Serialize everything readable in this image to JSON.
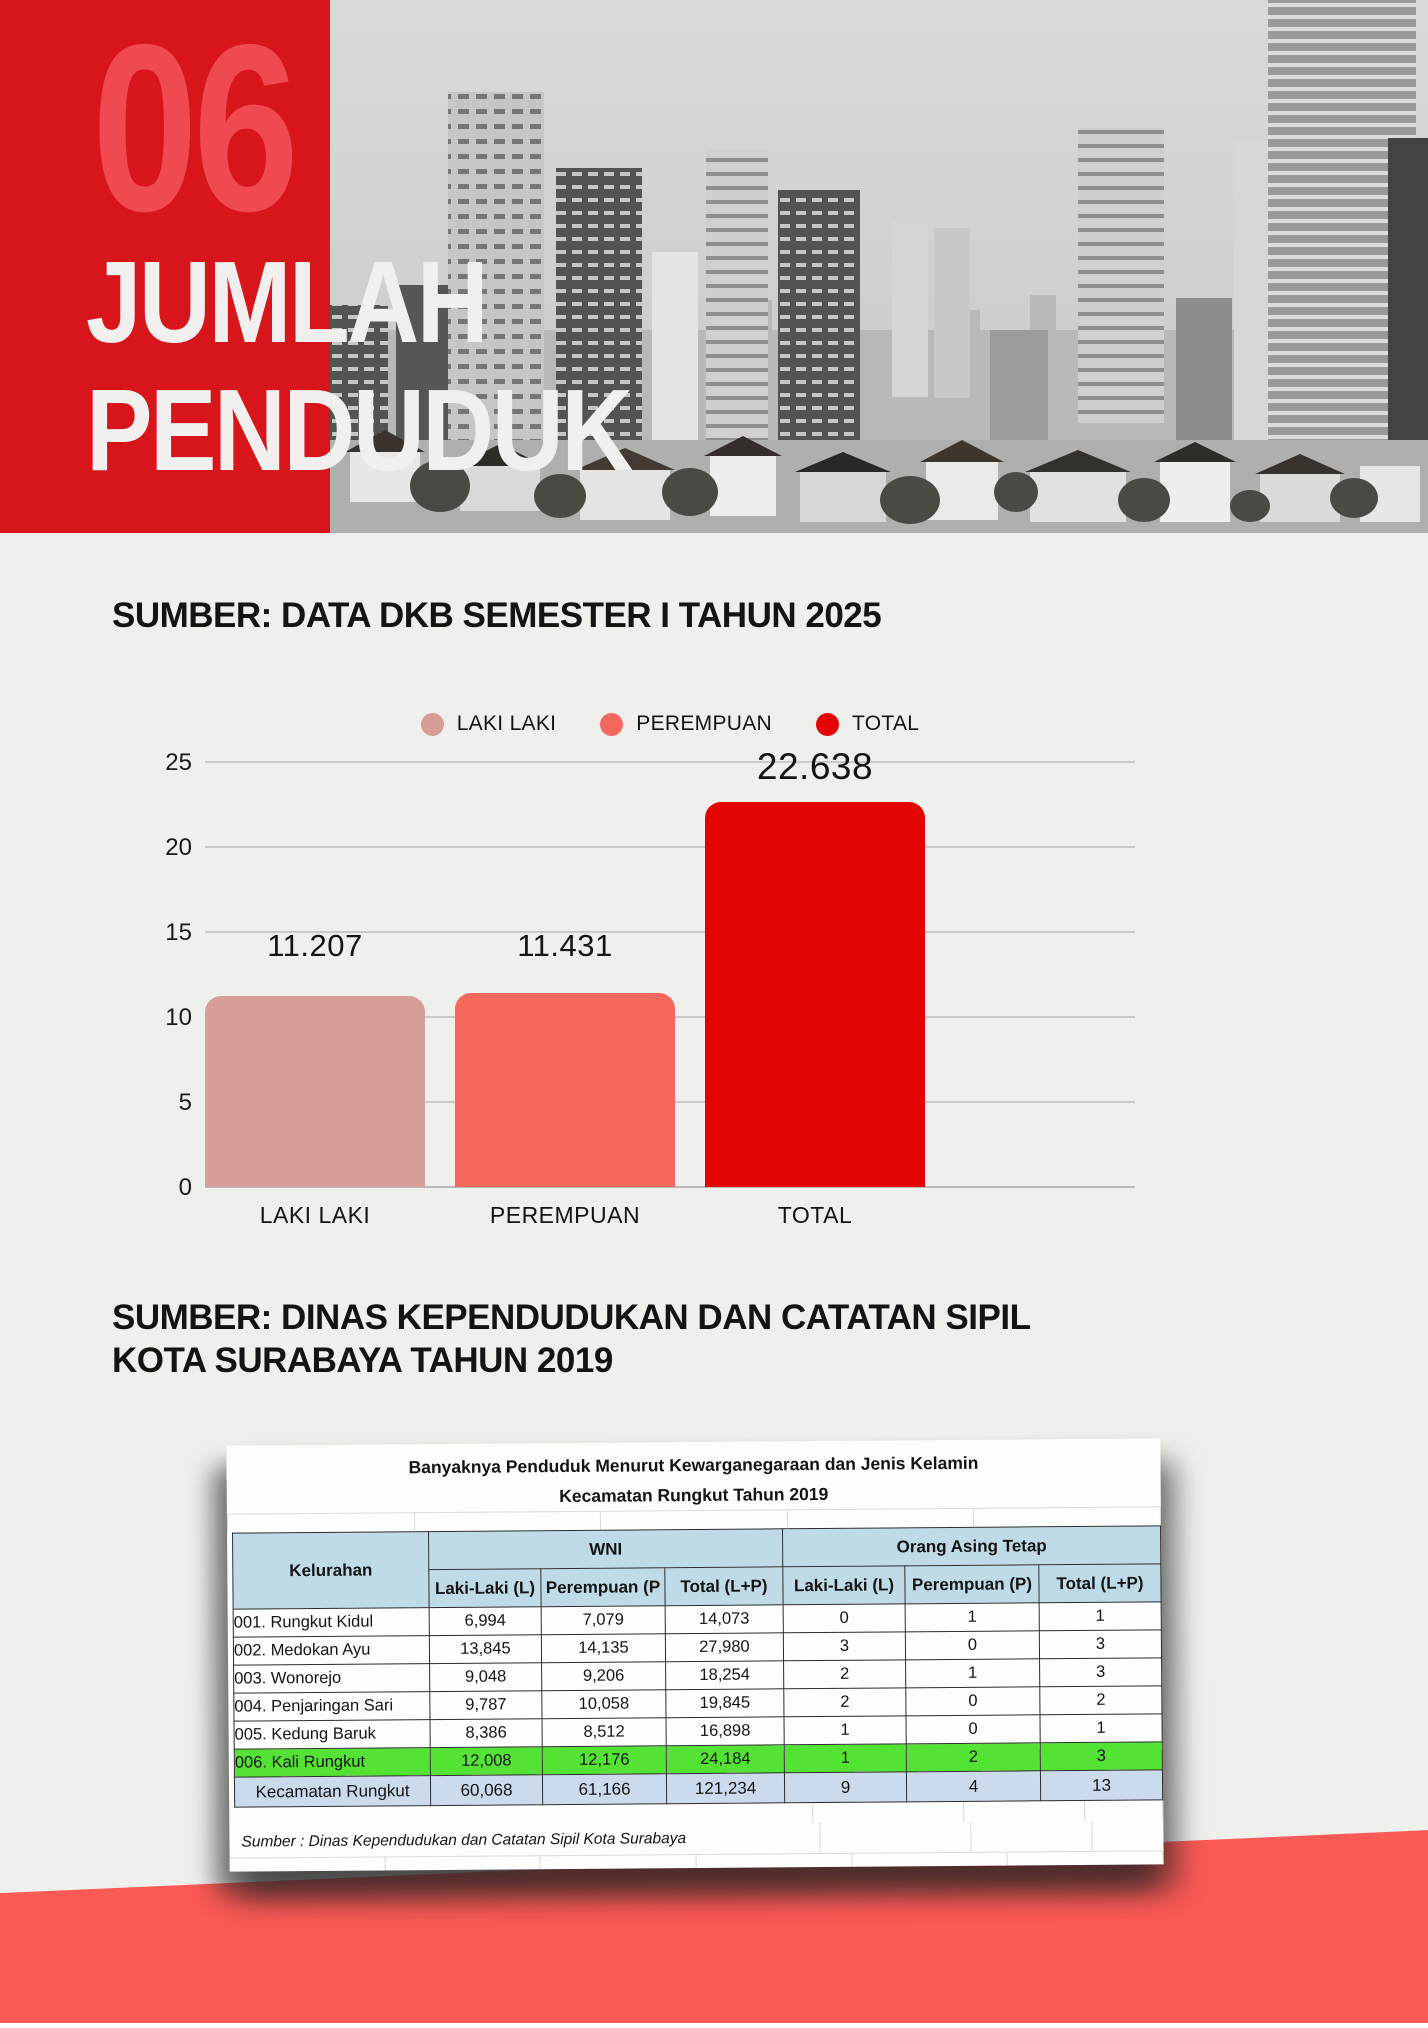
{
  "header": {
    "number": "06",
    "title_line1": "JUMLAH",
    "title_line2": "PENDUDUK",
    "block_color": "#d7151b",
    "number_color": "#ef4a50",
    "photo": "grayscale-city-skyline"
  },
  "section1": {
    "heading": "SUMBER: DATA DKB SEMESTER I TAHUN 2025"
  },
  "chart_data": {
    "type": "bar",
    "title": "",
    "categories": [
      "LAKI LAKI",
      "PEREMPUAN",
      "TOTAL"
    ],
    "values": [
      11207,
      11431,
      22638
    ],
    "value_labels": [
      "11.207",
      "11.431",
      "22.638"
    ],
    "bar_colors": [
      "#d79d97",
      "#f5685d",
      "#e30505"
    ],
    "y_ticks": [
      "25",
      "20",
      "15",
      "10",
      "5",
      "0"
    ],
    "ylim": [
      0,
      25000
    ],
    "y_unit": "thousands",
    "grid": true,
    "legend": {
      "position": "top",
      "items": [
        {
          "label": "LAKI LAKI",
          "color": "#d79d97"
        },
        {
          "label": "PEREMPUAN",
          "color": "#f5685d"
        },
        {
          "label": "TOTAL",
          "color": "#e30505"
        }
      ]
    }
  },
  "section2": {
    "heading_line1": "SUMBER: DINAS KEPENDUDUKAN DAN CATATAN SIPIL",
    "heading_line2": "KOTA SURABAYA TAHUN 2019"
  },
  "table": {
    "title1": "Banyaknya Penduduk Menurut Kewarganegaraan dan Jenis Kelamin",
    "title2": "Kecamatan Rungkut Tahun 2019",
    "col_kelurahan": "Kelurahan",
    "group_wni": "WNI",
    "group_asing": "Orang Asing Tetap",
    "sub_wni": [
      "Laki-Laki (L)",
      "Perempuan (P",
      "Total (L+P)"
    ],
    "sub_asing": [
      "Laki-Laki (L)",
      "Perempuan (P)",
      "Total (L+P)"
    ],
    "rows": [
      {
        "name": "001. Rungkut Kidul",
        "wni": [
          "6,994",
          "7,079",
          "14,073"
        ],
        "asing": [
          "0",
          "1",
          "1"
        ]
      },
      {
        "name": "002. Medokan Ayu",
        "wni": [
          "13,845",
          "14,135",
          "27,980"
        ],
        "asing": [
          "3",
          "0",
          "3"
        ]
      },
      {
        "name": "003. Wonorejo",
        "wni": [
          "9,048",
          "9,206",
          "18,254"
        ],
        "asing": [
          "2",
          "1",
          "3"
        ]
      },
      {
        "name": "004. Penjaringan Sari",
        "wni": [
          "9,787",
          "10,058",
          "19,845"
        ],
        "asing": [
          "2",
          "0",
          "2"
        ]
      },
      {
        "name": "005. Kedung Baruk",
        "wni": [
          "8,386",
          "8,512",
          "16,898"
        ],
        "asing": [
          "1",
          "0",
          "1"
        ]
      },
      {
        "name": "006. Kali Rungkut",
        "wni": [
          "12,008",
          "12,176",
          "24,184"
        ],
        "asing": [
          "1",
          "2",
          "3"
        ]
      }
    ],
    "highlighted_row": "006. Kali Rungkut",
    "highlight_color": "#54e335",
    "total_row": {
      "name": "Kecamatan Rungkut",
      "wni": [
        "60,068",
        "61,166",
        "121,234"
      ],
      "asing": [
        "9",
        "4",
        "13"
      ]
    },
    "total_row_color": "#ccdaee",
    "header_color": "#bfdbe7",
    "footer_note": "Sumber : Dinas Kependudukan dan Catatan Sipil Kota Surabaya"
  },
  "page": {
    "background": "#efefec",
    "accent_band_color": "#fb5a56"
  }
}
